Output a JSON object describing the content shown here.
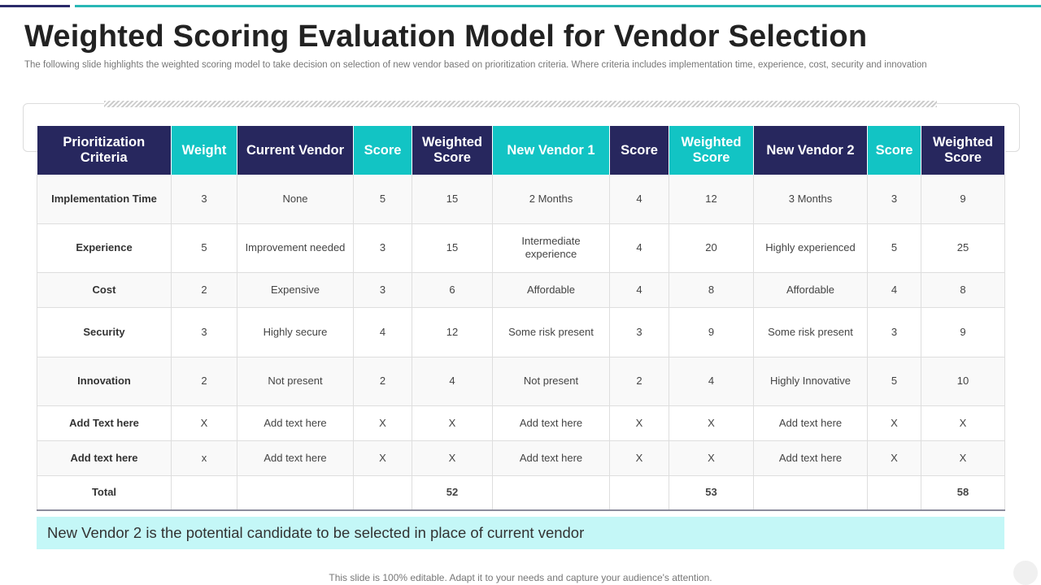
{
  "title": "Weighted Scoring Evaluation Model for Vendor Selection",
  "subtitle": "The following slide highlights the weighted scoring model to take decision on selection of new vendor based on prioritization criteria. Where criteria includes implementation time, experience, cost, security and innovation",
  "table": {
    "headers": [
      "Prioritization Criteria",
      "Weight",
      "Current Vendor",
      "Score",
      "Weighted Score",
      "New Vendor 1",
      "Score",
      "Weighted Score",
      "New Vendor 2",
      "Score",
      "Weighted Score"
    ],
    "rows": [
      [
        "Implementation Time",
        "3",
        "None",
        "5",
        "15",
        "2 Months",
        "4",
        "12",
        "3 Months",
        "3",
        "9"
      ],
      [
        "Experience",
        "5",
        "Improvement needed",
        "3",
        "15",
        "Intermediate experience",
        "4",
        "20",
        "Highly experienced",
        "5",
        "25"
      ],
      [
        "Cost",
        "2",
        "Expensive",
        "3",
        "6",
        "Affordable",
        "4",
        "8",
        "Affordable",
        "4",
        "8"
      ],
      [
        "Security",
        "3",
        "Highly secure",
        "4",
        "12",
        "Some risk present",
        "3",
        "9",
        "Some risk present",
        "3",
        "9"
      ],
      [
        "Innovation",
        "2",
        "Not present",
        "2",
        "4",
        "Not present",
        "2",
        "4",
        "Highly Innovative",
        "5",
        "10"
      ],
      [
        "Add Text here",
        "X",
        "Add text here",
        "X",
        "X",
        "Add text here",
        "X",
        "X",
        "Add text here",
        "X",
        "X"
      ],
      [
        "Add text here",
        "x",
        "Add text here",
        "X",
        "X",
        "Add text here",
        "X",
        "X",
        "Add text here",
        "X",
        "X"
      ]
    ],
    "total": [
      "Total",
      "",
      "",
      "",
      "52",
      "",
      "",
      "53",
      "",
      "",
      "58"
    ]
  },
  "callout": "New Vendor 2 is the potential candidate to be selected in place of current vendor",
  "footer": "This slide is 100% editable. Adapt it to your needs and capture your audience's attention.",
  "colors": {
    "header_navy": "#27275e",
    "header_teal": "#12c4c4",
    "callout_bg": "#c4f7f7",
    "accent_teal": "#29b7b5"
  }
}
